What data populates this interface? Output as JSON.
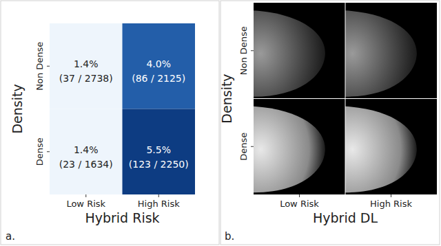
{
  "chart_data": [
    {
      "type": "heatmap",
      "panel_label": "a.",
      "x_label": "Hybrid Risk",
      "y_label": "Density",
      "x_categories": [
        "Low Risk",
        "High Risk"
      ],
      "y_categories": [
        "Non Dense",
        "Dense"
      ],
      "values": [
        [
          1.4,
          4.0
        ],
        [
          1.4,
          5.5
        ]
      ],
      "value_labels": [
        [
          "1.4%",
          "4.0%"
        ],
        [
          "1.4%",
          "5.5%"
        ]
      ],
      "count_labels": [
        [
          "(37 / 2738)",
          "(86 / 2125)"
        ],
        [
          "(23 / 1634)",
          "(123 / 2250)"
        ]
      ],
      "zlim": [
        1.4,
        5.5
      ]
    },
    {
      "type": "image_grid",
      "panel_label": "b.",
      "x_label": "Hybrid DL",
      "y_label": "Density",
      "x_categories": [
        "Low Risk",
        "High Risk"
      ],
      "y_categories": [
        "Non Dense",
        "Dense"
      ]
    }
  ]
}
